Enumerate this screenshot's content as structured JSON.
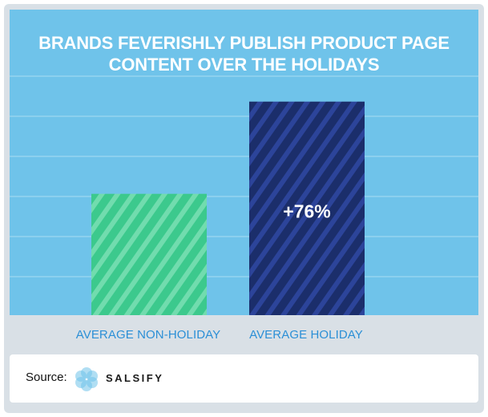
{
  "chart_data": {
    "type": "bar",
    "title_lines": [
      "BRANDS FEVERISHLY PUBLISH PRODUCT PAGE",
      "CONTENT OVER THE HOLIDAYS"
    ],
    "categories": [
      "AVERAGE NON-HOLIDAY",
      "AVERAGE HOLIDAY"
    ],
    "values": [
      100,
      176
    ],
    "data_labels": [
      "",
      "+76%"
    ],
    "bar_colors": [
      "#3cc98d",
      "#1b2e6b"
    ],
    "stripe_colors": [
      "#71dcae",
      "#2c449a"
    ],
    "ylim": [
      0,
      230
    ],
    "grid": true,
    "xlabel": "",
    "ylabel": ""
  },
  "colors": {
    "panel": "#6fc3ea",
    "frame": "#d9e0e6",
    "category_text": "#2b8fd6",
    "grid": "#a9dcf3"
  },
  "footer": {
    "source_label": "Source:",
    "brand": "SALSIFY",
    "logo_icon": "salsify-flower-icon"
  }
}
